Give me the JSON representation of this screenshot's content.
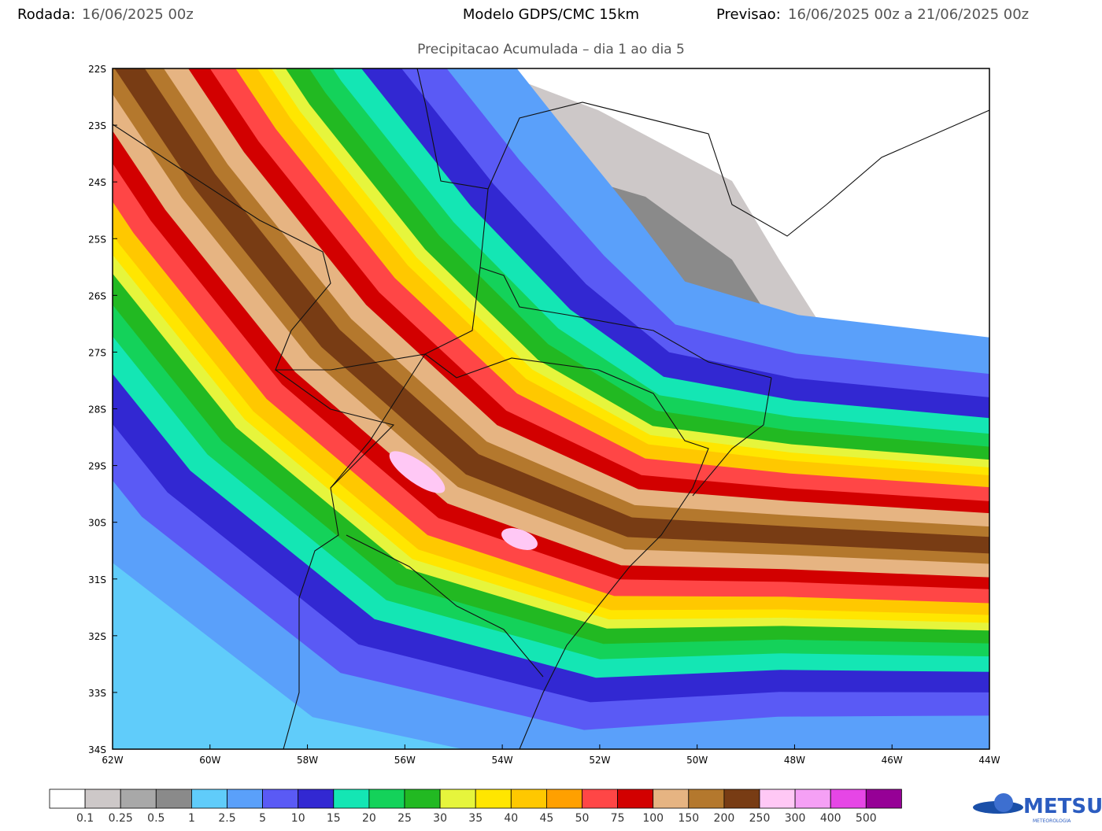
{
  "header": {
    "run_label": "Rodada:",
    "run_value": "16/06/2025 00z",
    "model": "Modelo GDPS/CMC 15km",
    "forecast_label": "Previsao:",
    "forecast_value": "16/06/2025 00z a 21/06/2025 00z",
    "subtitle": "Precipitacao Acumulada – dia 1 ao dia 5"
  },
  "map": {
    "lat_labels": [
      "22S",
      "23S",
      "24S",
      "25S",
      "26S",
      "27S",
      "28S",
      "29S",
      "30S",
      "31S",
      "32S",
      "33S",
      "34S"
    ],
    "lon_labels": [
      "62W",
      "60W",
      "58W",
      "56W",
      "54W",
      "52W",
      "50W",
      "48W",
      "46W",
      "44W"
    ]
  },
  "colorbar": {
    "colors": [
      "#ffffff",
      "#cdc8c8",
      "#a8a8a8",
      "#8a8a8a",
      "#60ccfa",
      "#5aa0fa",
      "#5a5af5",
      "#3228d2",
      "#14e6b4",
      "#14d25a",
      "#22b922",
      "#e6f53c",
      "#ffe600",
      "#ffc800",
      "#ffa000",
      "#ff4646",
      "#d20000",
      "#e6b482",
      "#b4782d",
      "#783c14",
      "#ffc8f5",
      "#f5a0f5",
      "#e646e6",
      "#960096"
    ],
    "labels": [
      "0.1",
      "0.25",
      "0.5",
      "1",
      "2.5",
      "5",
      "10",
      "15",
      "20",
      "25",
      "30",
      "35",
      "40",
      "45",
      "50",
      "75",
      "100",
      "150",
      "200",
      "250",
      "300",
      "400",
      "500"
    ]
  },
  "logo": {
    "name": "METSUL",
    "tagline": "METEOROLOGIA"
  }
}
